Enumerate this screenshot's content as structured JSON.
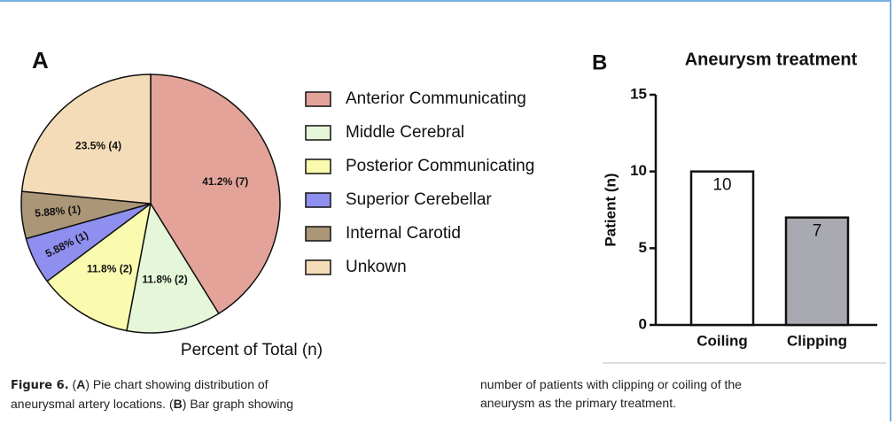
{
  "chart_data": [
    {
      "type": "pie",
      "panel": "A",
      "xlabel": "Percent of Total (n)",
      "categories": [
        "Anterior Communicating",
        "Middle Cerebral",
        "Posterior Communicating",
        "Superior Cerebellar",
        "Internal Carotid",
        "Unkown"
      ],
      "values": [
        41.2,
        11.8,
        11.8,
        5.88,
        5.88,
        23.5
      ],
      "value_labels": [
        "41.2% (7)",
        "11.8% (2)",
        "11.8% (2)",
        "5.88% (1)",
        "5.88% (1)",
        "23.5% (4)"
      ],
      "colors": [
        "#e3a399",
        "#e6f7d9",
        "#fbfbb0",
        "#8f8ff0",
        "#ab9677",
        "#f5dcb8"
      ]
    },
    {
      "type": "bar",
      "panel": "B",
      "title": "Aneurysm treatment",
      "ylabel": "Patient (n)",
      "categories": [
        "Coiling",
        "Clipping"
      ],
      "values": [
        10,
        7
      ],
      "colors": [
        "#ffffff",
        "#a9a9b1"
      ],
      "ylim": [
        0,
        15
      ],
      "yticks": [
        0,
        5,
        10,
        15
      ]
    }
  ],
  "caption": {
    "label": "Figure 6.",
    "parts": [
      "(",
      "A",
      ") Pie chart showing distribution of aneurysmal artery locations. (",
      "B",
      ") Bar graph showing number of patients with clipping or coiling of the aneurysm as the primary treatment."
    ]
  }
}
